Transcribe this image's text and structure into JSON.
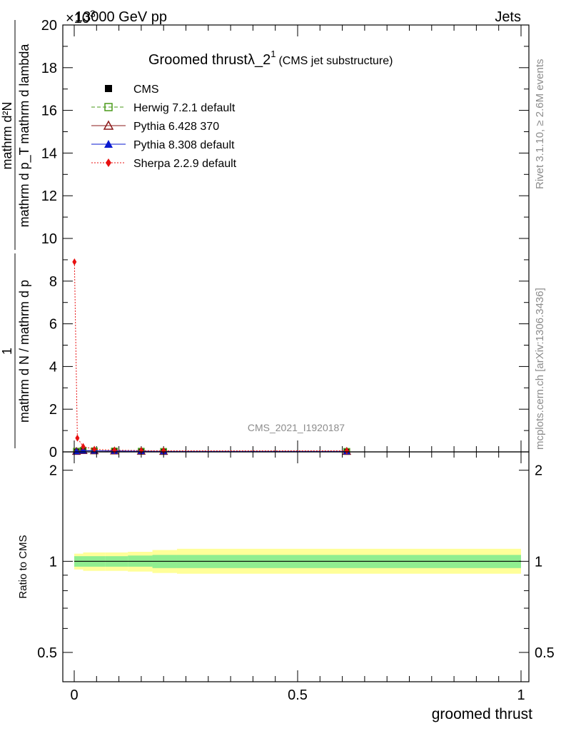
{
  "header": {
    "energy": "13000 GeV pp",
    "process": "Jets",
    "exponent": "×10",
    "exponent_power": "3"
  },
  "side": {
    "rivet": "Rivet 3.1.10, ≥ 2.6M events",
    "mcplots": "mcplots.cern.ch [arXiv:1306.3436]"
  },
  "plot": {
    "title_main": "Groomed thrust",
    "title_sym": "λ_2",
    "title_sup": "1",
    "title_paren": "(CMS jet substructure)",
    "analysis_id": "CMS_2021_I1920187",
    "ylabel_top_num": "1",
    "ylabel_top_den": "mathrm d N / mathrm d p",
    "ylabel_main": "mathrm d²N",
    "ylabel_main_den": "mathrm d p_T mathrm d lambda",
    "ratio_ylabel": "Ratio to CMS",
    "xlabel": "groomed thrust"
  },
  "legend": [
    {
      "name": "CMS",
      "color": "#000000",
      "marker": "square-filled"
    },
    {
      "name": "Herwig 7.2.1 default",
      "color": "#4a9a1a",
      "marker": "square-open"
    },
    {
      "name": "Pythia 6.428 370",
      "color": "#8b1a1a",
      "marker": "triangle-open"
    },
    {
      "name": "Pythia 8.308 default",
      "color": "#0a1ad0",
      "marker": "triangle-filled"
    },
    {
      "name": "Sherpa 2.2.9 default",
      "color": "#e81010",
      "marker": "diamond-filled"
    }
  ],
  "chart_data": {
    "type": "line",
    "main": {
      "xlim": [
        0,
        1
      ],
      "ylim": [
        0,
        20
      ],
      "y_multiplier": "10^3",
      "yticks": [
        "0",
        "2",
        "4",
        "6",
        "8",
        "10",
        "12",
        "14",
        "16",
        "18",
        "20"
      ],
      "xticks": [
        "0",
        "0.5",
        "1"
      ],
      "series": [
        {
          "name": "CMS",
          "x": [
            0.005,
            0.02,
            0.045,
            0.09,
            0.15,
            0.2,
            0.61
          ],
          "y": [
            0.04,
            0.08,
            0.05,
            0.04,
            0.03,
            0.02,
            0.02
          ]
        },
        {
          "name": "Herwig 7.2.1 default",
          "x": [
            0.005,
            0.02,
            0.045,
            0.09,
            0.15,
            0.2,
            0.61
          ],
          "y": [
            0.03,
            0.07,
            0.05,
            0.04,
            0.03,
            0.02,
            0.02
          ]
        },
        {
          "name": "Pythia 6.428 370",
          "x": [
            0.005,
            0.02,
            0.045,
            0.09,
            0.15,
            0.2,
            0.61
          ],
          "y": [
            0.02,
            0.06,
            0.05,
            0.04,
            0.03,
            0.02,
            0.02
          ]
        },
        {
          "name": "Pythia 8.308 default",
          "x": [
            0.005,
            0.02,
            0.045,
            0.09,
            0.15,
            0.2,
            0.61
          ],
          "y": [
            0.02,
            0.06,
            0.05,
            0.04,
            0.03,
            0.02,
            0.02
          ]
        },
        {
          "name": "Sherpa 2.2.9 default",
          "x": [
            0.0005,
            0.007,
            0.02,
            0.045,
            0.09,
            0.15,
            0.2,
            0.61
          ],
          "y": [
            8.9,
            0.65,
            0.25,
            0.12,
            0.08,
            0.06,
            0.05,
            0.05
          ]
        }
      ]
    },
    "ratio": {
      "ylim": [
        0.4,
        2.3
      ],
      "scale": "log",
      "yticks": [
        "0.5",
        "1",
        "2"
      ],
      "bands": [
        {
          "x0": 0.0,
          "x1": 0.02,
          "inner": [
            0.96,
            1.04
          ],
          "outer": [
            0.94,
            1.06
          ]
        },
        {
          "x0": 0.02,
          "x1": 0.07,
          "inner": [
            0.96,
            1.04
          ],
          "outer": [
            0.93,
            1.07
          ]
        },
        {
          "x0": 0.07,
          "x1": 0.12,
          "inner": [
            0.96,
            1.04
          ],
          "outer": [
            0.93,
            1.07
          ]
        },
        {
          "x0": 0.12,
          "x1": 0.175,
          "inner": [
            0.96,
            1.045
          ],
          "outer": [
            0.925,
            1.075
          ]
        },
        {
          "x0": 0.175,
          "x1": 0.23,
          "inner": [
            0.95,
            1.05
          ],
          "outer": [
            0.915,
            1.09
          ]
        },
        {
          "x0": 0.23,
          "x1": 1.0,
          "inner": [
            0.95,
            1.05
          ],
          "outer": [
            0.91,
            1.1
          ]
        }
      ],
      "inner_color": "#90ee90",
      "outer_color": "#ffff99"
    }
  }
}
